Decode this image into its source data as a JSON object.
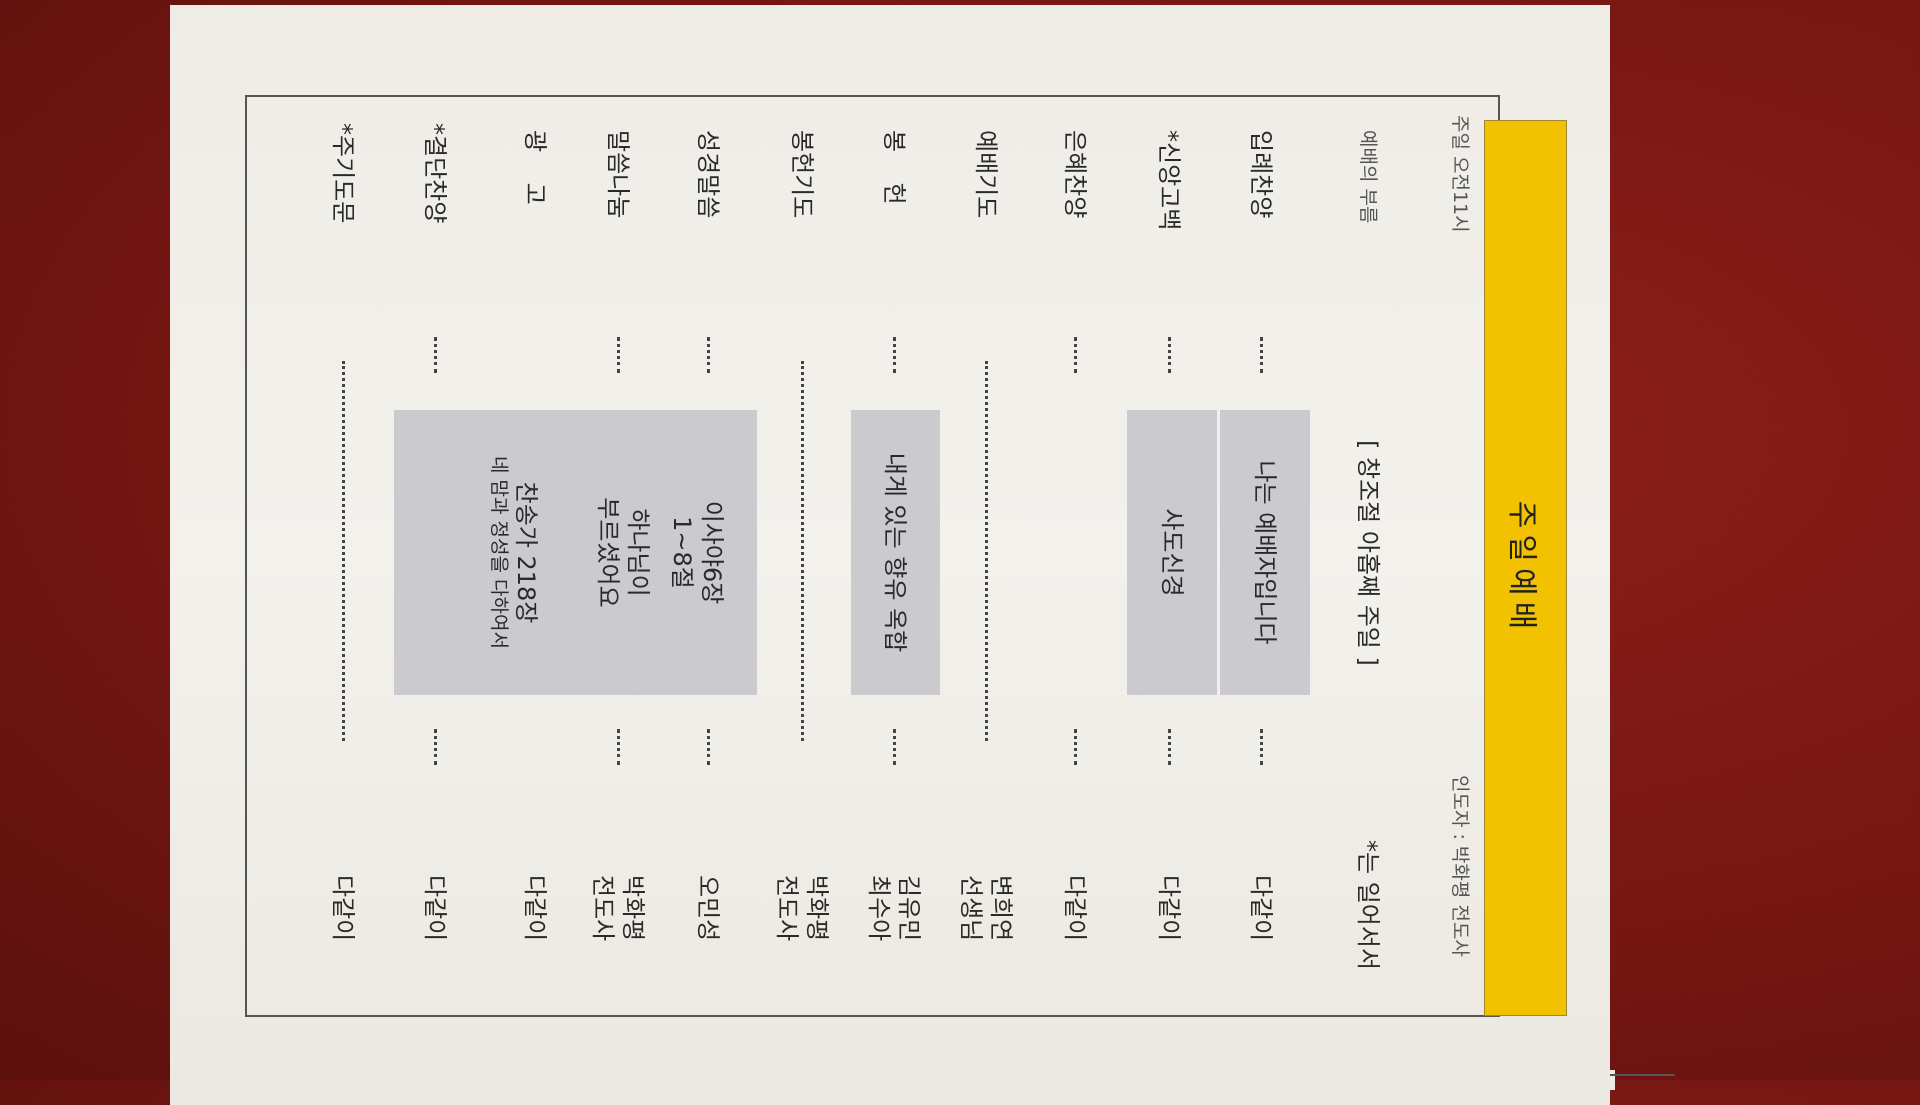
{
  "header": {
    "title": "주일예배",
    "time": "주일 오전11시",
    "leader": "인도자 : 박화평 전도사",
    "call": "예배의 부름",
    "season": "[ 창조절 아홉째 주일 ]",
    "stand_note": "*는 일어서서"
  },
  "order": [
    {
      "label": "입례찬양",
      "person": [
        "다같이"
      ]
    },
    {
      "label": "*신앙고백",
      "person": [
        "다같이"
      ]
    },
    {
      "label": "은혜찬양",
      "person": [
        "다같이"
      ]
    },
    {
      "label": "예배기도",
      "person": [
        "변희연",
        "선생님"
      ]
    },
    {
      "label": "봉    헌",
      "person": [
        "김유민",
        "최수아"
      ]
    },
    {
      "label": "봉헌기도",
      "person": [
        "박화평",
        "전도사"
      ]
    },
    {
      "label": "성경말씀",
      "person": [
        "오민성"
      ]
    },
    {
      "label": "말씀나눔",
      "person": [
        "박화평",
        "전도사"
      ]
    },
    {
      "label": "광    고",
      "person": [
        "다같이"
      ]
    },
    {
      "label": "*결단찬양",
      "person": [
        "다같이"
      ]
    },
    {
      "label": "*주기도문",
      "person": [
        "다같이"
      ]
    }
  ],
  "details": {
    "entrance_song": "나는 예배자입니다",
    "creed": "사도신경",
    "offering_song": "내게 있는 향유 옥합",
    "scripture_book": "이사야6장",
    "scripture_verses": "1~8절",
    "sermon_line1": "하나님이",
    "sermon_line2": "부르셨어요",
    "hymn": "찬송가 218장",
    "hymn_title": "네 맘과 정성을 다하여서"
  },
  "colors": {
    "banner": "#f2c200",
    "highlight_box": "#cacacf",
    "paper": "#efece6",
    "background": "#741612"
  }
}
